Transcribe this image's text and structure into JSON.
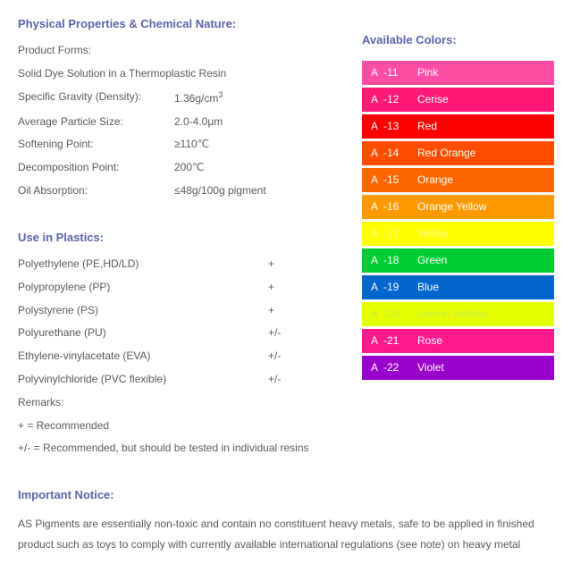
{
  "left": {
    "physical_title": "Physical Properties & Chemical Nature:",
    "forms_label": "Product Forms:",
    "forms_value": "Solid Dye Solution in a Thermoplastic Resin",
    "props": [
      {
        "label": "Specific Gravity (Density):",
        "value_html": "1.36g/cm<sup>3</sup>"
      },
      {
        "label": "Average Particle Size:",
        "value": "2.0-4.0μm"
      },
      {
        "label": "Softening Point:",
        "value": "≥110℃"
      },
      {
        "label": "Decomposition Point:",
        "value": "200℃"
      },
      {
        "label": "Oil Absorption:",
        "value": "≤48g/100g pigment"
      }
    ],
    "use_title": "Use in Plastics:",
    "uses": [
      {
        "label": "Polyethylene (PE,HD/LD)",
        "value": "+"
      },
      {
        "label": "Polypropylene (PP)",
        "value": "+"
      },
      {
        "label": "Polystyrene (PS)",
        "value": "+"
      },
      {
        "label": "Polyurethane (PU)",
        "value": "+/-"
      },
      {
        "label": "Ethylene-vinylacetate (EVA)",
        "value": "+/-"
      },
      {
        "label": "Polyvinylchloride (PVC flexible)",
        "value": "+/-"
      }
    ],
    "remarks_label": "Remarks:",
    "remarks1": "+ = Recommended",
    "remarks2": "+/- = Recommended, but should be tested in individual resins"
  },
  "right": {
    "title": "Available Colors:",
    "swatches": [
      {
        "code_a": "A",
        "code_n": "-11",
        "name": "Pink",
        "bg": "#ff4da6",
        "fg": "#ffffff"
      },
      {
        "code_a": "A",
        "code_n": "-12",
        "name": "Cerise",
        "bg": "#ff1a75",
        "fg": "#ffffff"
      },
      {
        "code_a": "A",
        "code_n": "-13",
        "name": "Red",
        "bg": "#ff0000",
        "fg": "#ffffff"
      },
      {
        "code_a": "A",
        "code_n": "-14",
        "name": "Red Orange",
        "bg": "#ff4d00",
        "fg": "#ffffff"
      },
      {
        "code_a": "A",
        "code_n": "-15",
        "name": "Orange",
        "bg": "#ff6600",
        "fg": "#ffffff"
      },
      {
        "code_a": "A",
        "code_n": "-16",
        "name": "Orange Yellow",
        "bg": "#ff9900",
        "fg": "#ffffff"
      },
      {
        "code_a": "A",
        "code_n": "-17",
        "name": "Yellow",
        "bg": "#ffff00",
        "fg": "#fff59a"
      },
      {
        "code_a": "A",
        "code_n": "-18",
        "name": "Green",
        "bg": "#00cc33",
        "fg": "#ffffff"
      },
      {
        "code_a": "A",
        "code_n": "-19",
        "name": "Blue",
        "bg": "#0066cc",
        "fg": "#ffffff"
      },
      {
        "code_a": "A",
        "code_n": "-20",
        "name": "Lemon Yellowy",
        "bg": "#e6ff00",
        "fg": "#caea4e"
      },
      {
        "code_a": "A",
        "code_n": "-21",
        "name": "Rose",
        "bg": "#ff1a8c",
        "fg": "#ffffff"
      },
      {
        "code_a": "A",
        "code_n": "-22",
        "name": "Violet",
        "bg": "#9900cc",
        "fg": "#ffffff"
      }
    ]
  },
  "notice": {
    "title": "Important Notice:",
    "body": "AS Pigments are essentially non-toxic and contain no constituent heavy metals, safe to be applied in finished product such as toys to comply with currently available international regulations (see note) on heavy metal"
  }
}
